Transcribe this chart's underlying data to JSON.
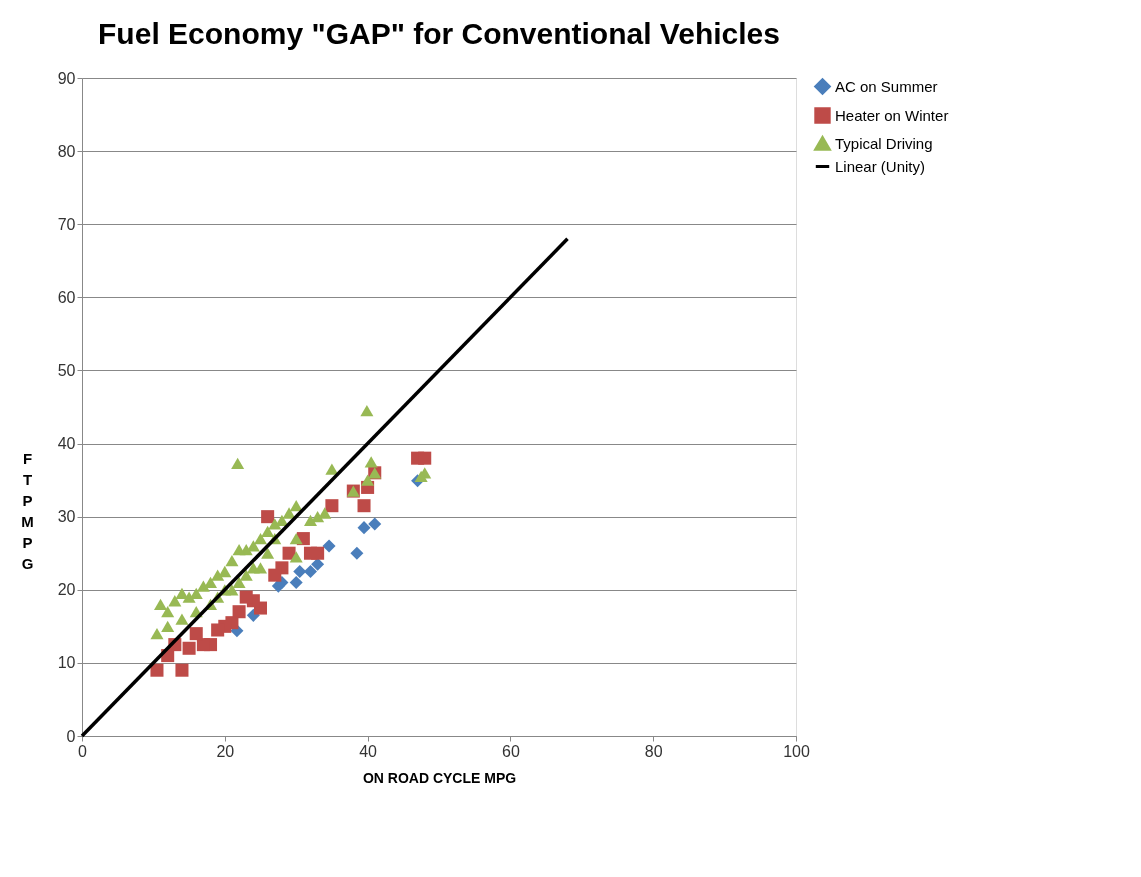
{
  "chart_data": {
    "type": "scatter",
    "title": "Fuel Economy \"GAP\" for Conventional Vehicles",
    "xlabel": "ON ROAD CYCLE MPG",
    "ylabel": "FTP MPG",
    "xlim": [
      0,
      100
    ],
    "xticks": [
      0,
      20,
      40,
      60,
      80,
      100
    ],
    "ylim": [
      0,
      90
    ],
    "yticks": [
      0,
      10,
      20,
      30,
      40,
      50,
      60,
      70,
      80,
      90
    ],
    "grid": "y",
    "legend": "right",
    "series": [
      {
        "name": "AC on Summer",
        "color": "#4a7ebb",
        "marker": "diamond",
        "x": [
          47,
          41,
          39.5,
          38.5,
          34.6,
          33,
          32,
          30.5,
          27.5,
          21.7,
          28,
          24,
          30
        ],
        "values": [
          34.9,
          29,
          28.5,
          25,
          26,
          23.5,
          22.5,
          22.5,
          20.5,
          14.4,
          21,
          16.5,
          21
        ]
      },
      {
        "name": "Heater on Winter",
        "color": "#be4b48",
        "marker": "square",
        "x": [
          47,
          48,
          40,
          41,
          39.5,
          38,
          35,
          33,
          32,
          31,
          28,
          27,
          26,
          25,
          24,
          22,
          21,
          20,
          19,
          18,
          17,
          15,
          14,
          10.5,
          12,
          13,
          16,
          23,
          29
        ],
        "values": [
          38,
          38,
          34,
          36,
          31.5,
          33.5,
          31.5,
          25,
          25,
          27,
          23,
          22,
          30,
          17.5,
          18.5,
          17,
          15.5,
          15,
          14.5,
          12.5,
          12.5,
          12,
          9,
          9,
          11,
          12.5,
          14,
          19,
          25
        ]
      },
      {
        "name": "Typical Driving",
        "color": "#98b954",
        "marker": "triangle",
        "x": [
          39.9,
          21.8,
          35,
          40.5,
          41,
          40,
          48,
          47.5,
          38,
          34,
          33,
          32,
          30,
          29,
          28,
          27,
          26,
          25,
          24,
          23,
          22,
          21,
          20,
          19,
          18,
          17,
          16,
          15,
          14,
          13,
          12,
          11,
          10.5,
          12,
          14,
          16,
          18,
          20,
          22,
          24,
          26,
          30,
          30,
          27,
          25,
          23,
          21,
          19
        ],
        "values": [
          44.5,
          37.3,
          36.5,
          37.5,
          36,
          35,
          36,
          35.5,
          33.5,
          30.5,
          30,
          29.5,
          31.5,
          30.5,
          29.5,
          29,
          28,
          27,
          26,
          25.5,
          25.5,
          24,
          22.5,
          22,
          21,
          20.5,
          19.5,
          19,
          19.5,
          18.5,
          17,
          18,
          14,
          15,
          16,
          17,
          18,
          20,
          21,
          23,
          25,
          27,
          24.5,
          27,
          23,
          22,
          20,
          19
        ]
      },
      {
        "name": "Linear (Unity)",
        "type": "line",
        "color": "#000000",
        "marker": "none",
        "x": [
          0,
          68
        ],
        "values": [
          0,
          68
        ]
      }
    ]
  }
}
